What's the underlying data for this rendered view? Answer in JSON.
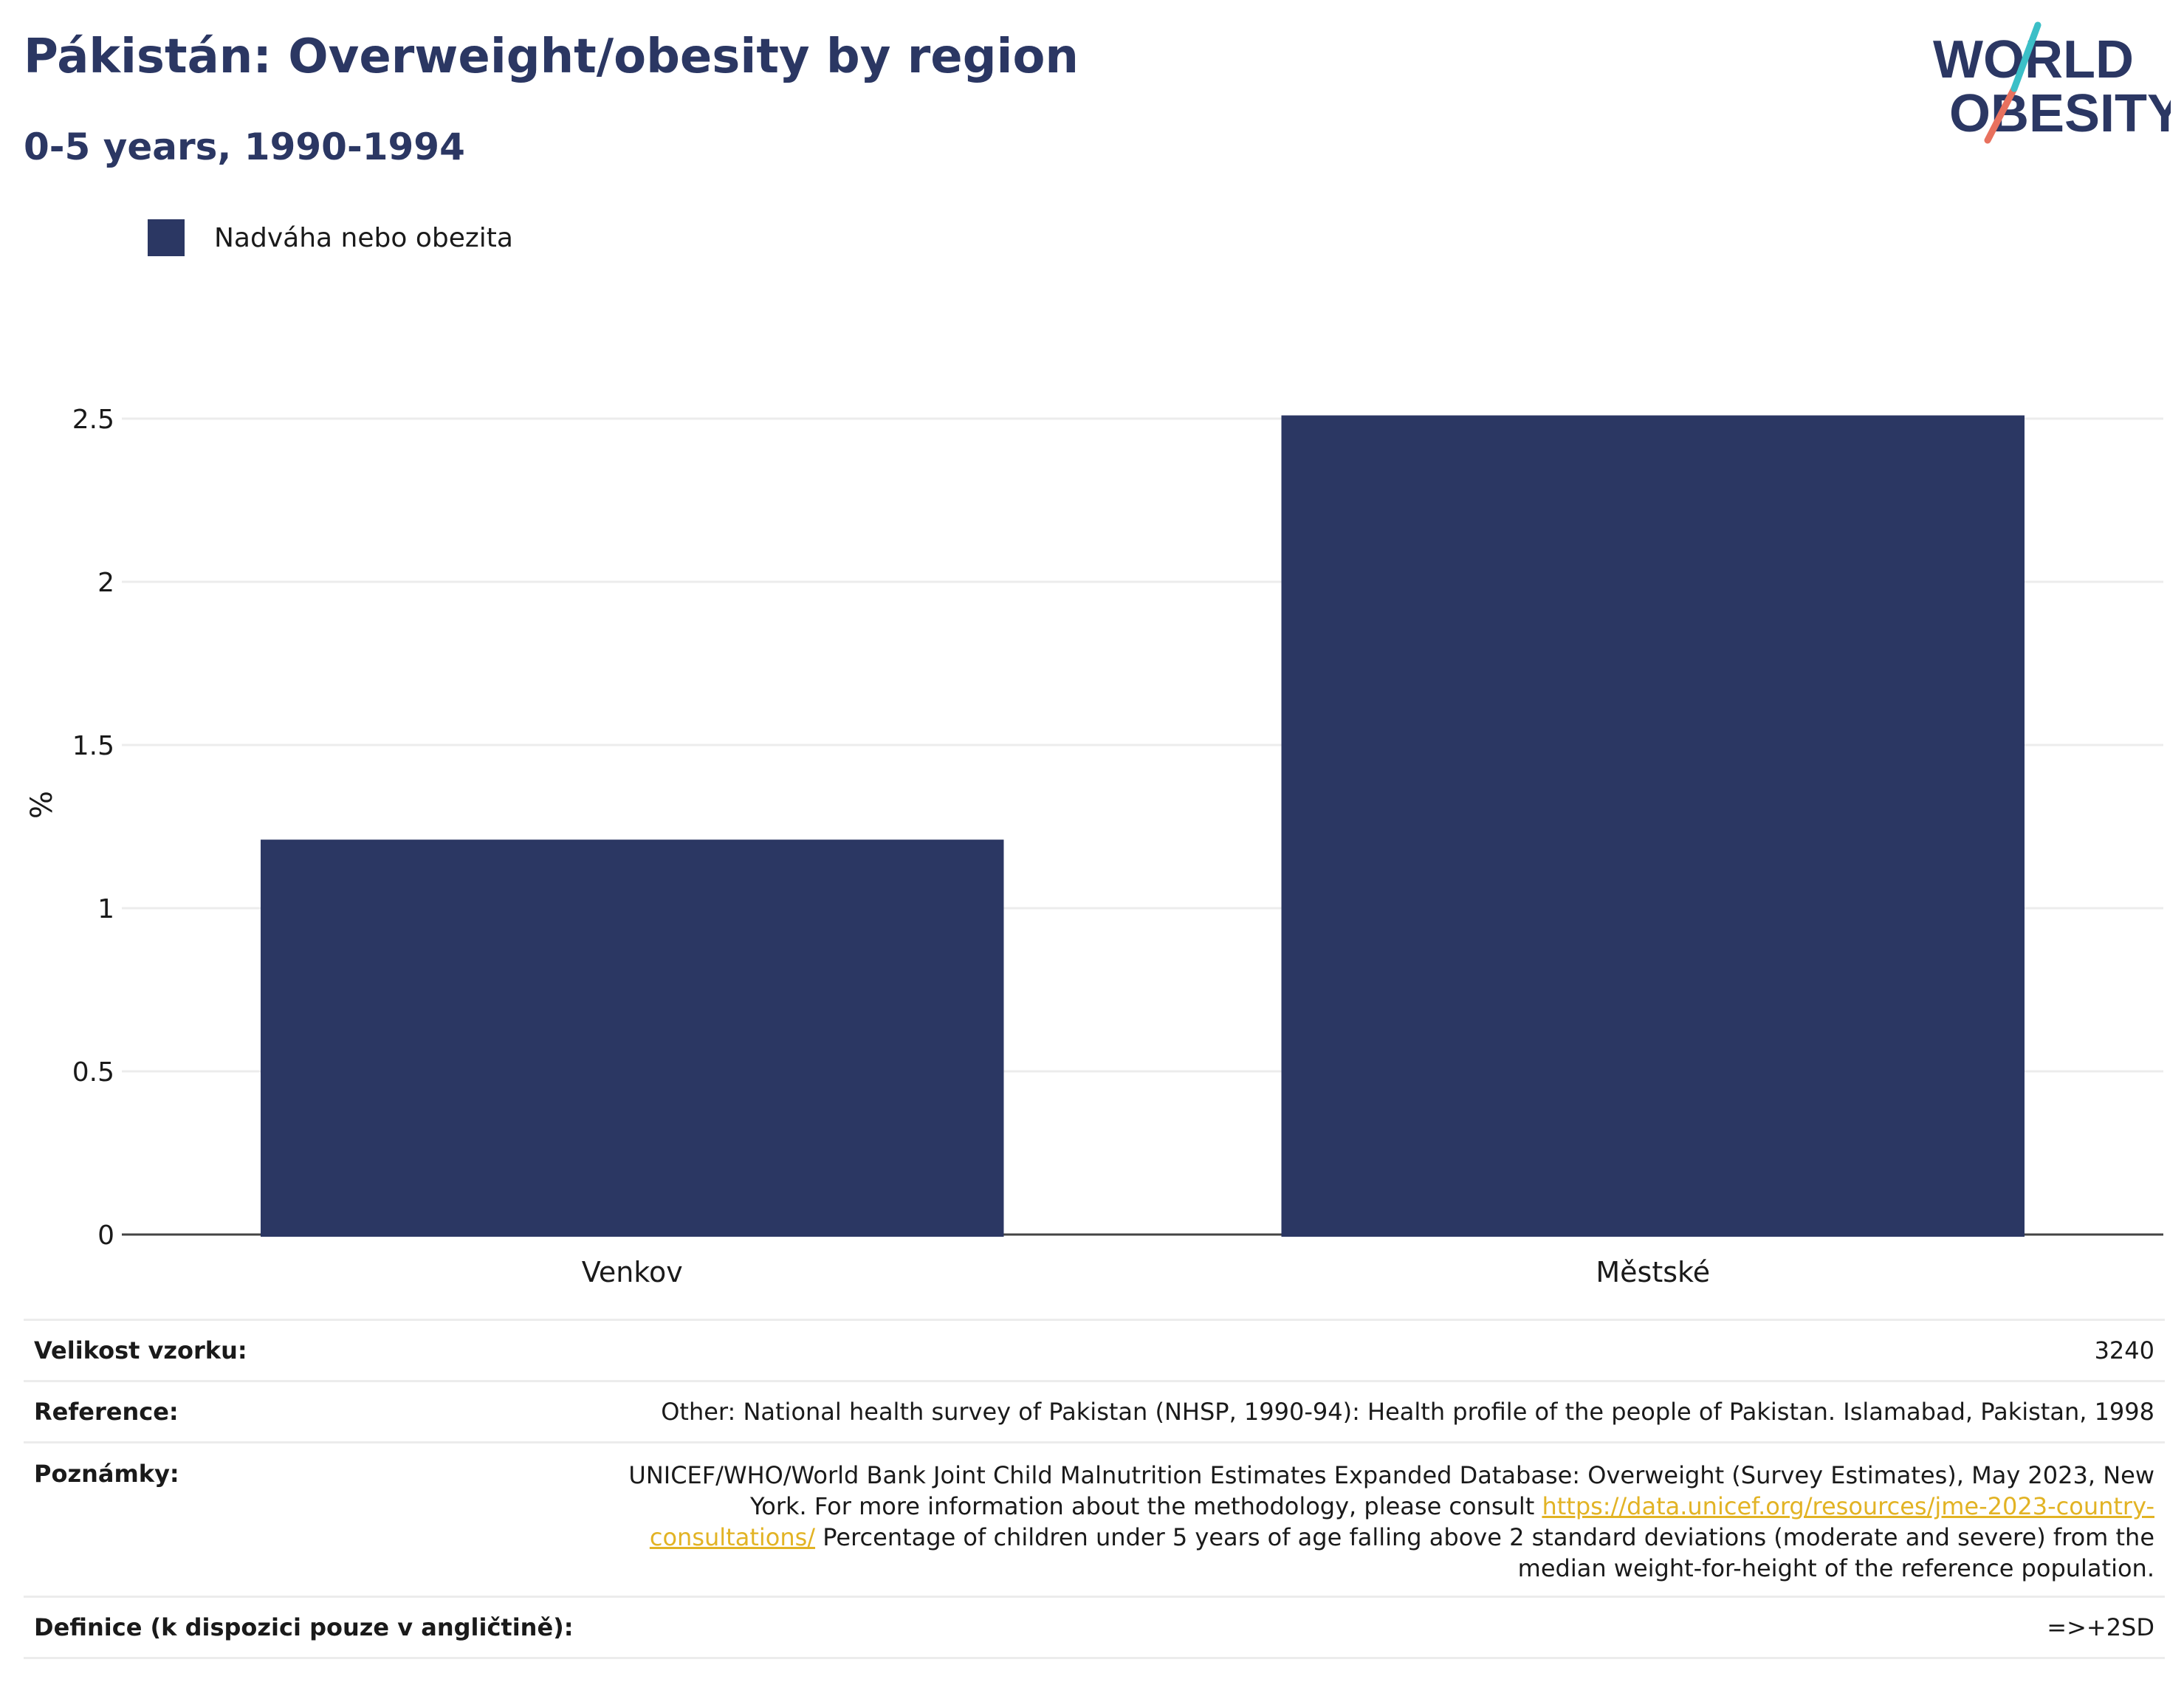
{
  "header": {
    "title": "Pákistán: Overweight/obesity by region",
    "subtitle": "0-5 years, 1990-1994"
  },
  "logo": {
    "line1": "WORLD",
    "line2": "OBESITY"
  },
  "colors": {
    "bar": "#2b3763",
    "title": "#2b3763",
    "link": "#e2b324",
    "logo_teal": "#3bbfc7",
    "logo_coral": "#e8715e"
  },
  "chart_data": {
    "type": "bar",
    "categories": [
      "Venkov",
      "Městské"
    ],
    "series": [
      {
        "name": "Nadváha nebo obezita",
        "values": [
          1.21,
          2.51
        ]
      }
    ],
    "ylabel": "%",
    "xlabel": "",
    "ylim": [
      0,
      2.6
    ],
    "yticks": [
      0,
      0.5,
      1,
      1.5,
      2,
      2.5
    ],
    "ytick_labels": [
      "0",
      "0.5",
      "1",
      "1.5",
      "2",
      "2.5"
    ],
    "grid": true,
    "legend": "top-left"
  },
  "info": {
    "sample_label": "Velikost vzorku:",
    "sample_value": "3240",
    "reference_label": "Reference:",
    "reference_value": "Other: National health survey of Pakistan (NHSP, 1990-94): Health profile of the people of Pakistan. Islamabad, Pakistan, 1998",
    "notes_label": "Poznámky:",
    "notes_text_1": "UNICEF/WHO/World Bank Joint Child Malnutrition Estimates Expanded Database: Overweight (Survey Estimates), May 2023, New York. For more information about the methodology, please consult ",
    "notes_link": "https://data.unicef.org/resources/jme-2023-country-consultations/",
    "notes_text_2": " Percentage of children under 5 years of age falling above 2 standard deviations (moderate and severe) from the median weight-for-height of the reference population.",
    "definition_label": "Definice (k dispozici pouze v angličtině):",
    "definition_value": "=>+2SD"
  }
}
